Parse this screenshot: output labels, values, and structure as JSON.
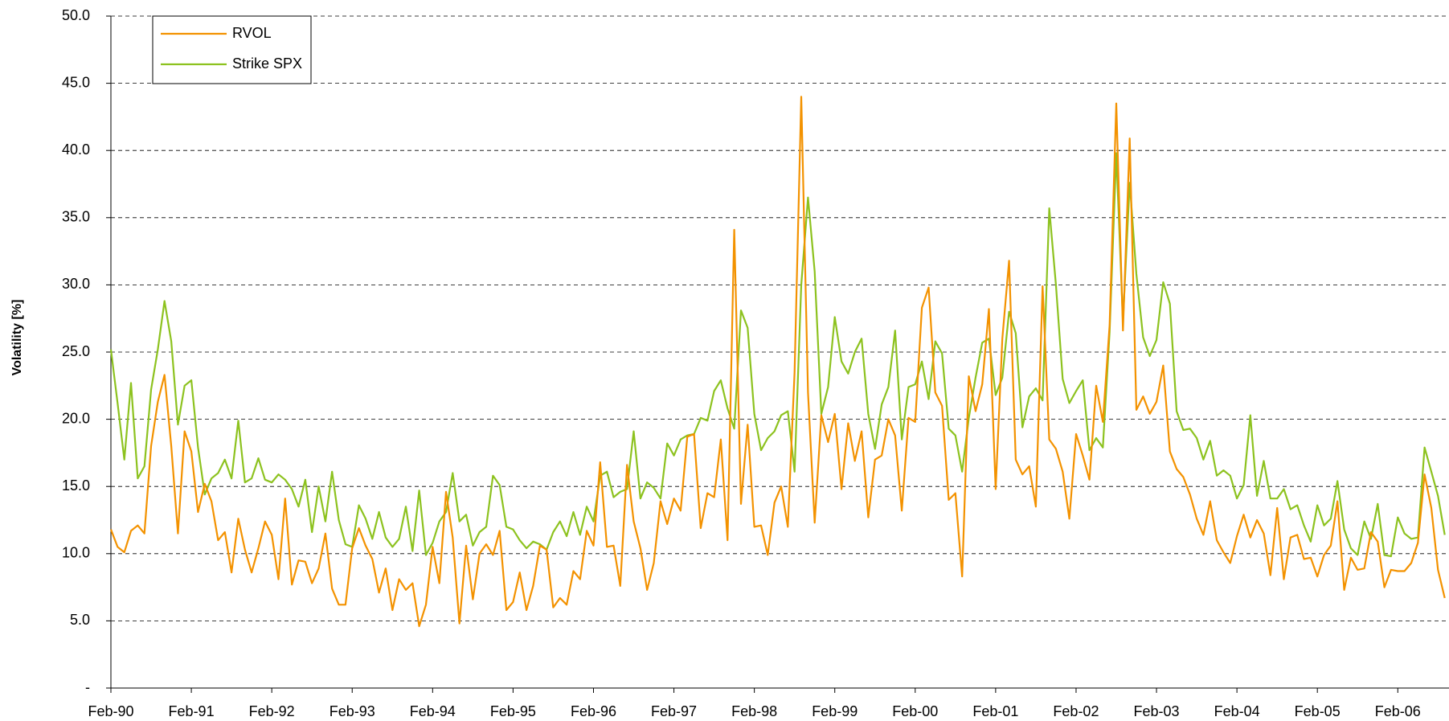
{
  "chart_data": {
    "type": "line",
    "y_label": "Volatility [%]",
    "categories": [
      "Feb-90",
      null,
      null,
      null,
      null,
      null,
      null,
      null,
      null,
      null,
      null,
      null,
      "Feb-91",
      null,
      null,
      null,
      null,
      null,
      null,
      null,
      null,
      null,
      null,
      null,
      "Feb-92",
      null,
      null,
      null,
      null,
      null,
      null,
      null,
      null,
      null,
      null,
      null,
      "Feb-93",
      null,
      null,
      null,
      null,
      null,
      null,
      null,
      null,
      null,
      null,
      null,
      "Feb-94",
      null,
      null,
      null,
      null,
      null,
      null,
      null,
      null,
      null,
      null,
      null,
      "Feb-95",
      null,
      null,
      null,
      null,
      null,
      null,
      null,
      null,
      null,
      null,
      null,
      "Feb-96",
      null,
      null,
      null,
      null,
      null,
      null,
      null,
      null,
      null,
      null,
      null,
      "Feb-97",
      null,
      null,
      null,
      null,
      null,
      null,
      null,
      null,
      null,
      null,
      null,
      "Feb-98",
      null,
      null,
      null,
      null,
      null,
      null,
      null,
      null,
      null,
      null,
      null,
      "Feb-99",
      null,
      null,
      null,
      null,
      null,
      null,
      null,
      null,
      null,
      null,
      null,
      "Feb-00",
      null,
      null,
      null,
      null,
      null,
      null,
      null,
      null,
      null,
      null,
      null,
      "Feb-01",
      null,
      null,
      null,
      null,
      null,
      null,
      null,
      null,
      null,
      null,
      null,
      "Feb-02",
      null,
      null,
      null,
      null,
      null,
      null,
      null,
      null,
      null,
      null,
      null,
      "Feb-03",
      null,
      null,
      null,
      null,
      null,
      null,
      null,
      null,
      null,
      null,
      null,
      "Feb-04",
      null,
      null,
      null,
      null,
      null,
      null,
      null,
      null,
      null,
      null,
      null,
      "Feb-05",
      null,
      null,
      null,
      null,
      null,
      null,
      null,
      null,
      null,
      null,
      null,
      "Feb-06",
      null,
      null,
      null,
      null,
      null,
      null,
      null
    ],
    "series": [
      {
        "name": "RVOL",
        "color": "#f39200",
        "values": [
          11.8,
          10.5,
          10.1,
          11.7,
          12.1,
          11.5,
          18,
          21.3,
          23.3,
          18,
          11.5,
          19.1,
          17.6,
          13.1,
          15.2,
          13.9,
          11,
          11.6,
          8.6,
          12.6,
          10.3,
          8.6,
          10.4,
          12.4,
          11.4,
          8.1,
          14.1,
          7.7,
          9.5,
          9.4,
          7.8,
          8.9,
          11.5,
          7.4,
          6.2,
          6.2,
          10.4,
          11.9,
          10.6,
          9.6,
          7.1,
          8.9,
          5.8,
          8.1,
          7.3,
          7.8,
          4.6,
          6.2,
          10.5,
          7.8,
          14.6,
          11.2,
          4.8,
          10.6,
          6.6,
          10,
          10.7,
          9.9,
          11.7,
          5.8,
          6.4,
          8.6,
          5.8,
          7.6,
          10.6,
          10.3,
          6,
          6.7,
          6.2,
          8.7,
          8.1,
          11.7,
          10.6,
          16.8,
          10.5,
          10.6,
          7.6,
          16.6,
          12.4,
          10.4,
          7.3,
          9.3,
          13.9,
          12.2,
          14.1,
          13.2,
          18.7,
          18.9,
          11.9,
          14.5,
          14.2,
          18.5,
          11,
          34.1,
          13.7,
          19.6,
          12,
          12.1,
          9.9,
          13.8,
          15,
          12,
          23.5,
          44,
          22,
          12.3,
          20.3,
          18.3,
          20.4,
          14.8,
          19.7,
          16.9,
          19.1,
          12.7,
          17,
          17.3,
          20,
          18.8,
          13.2,
          20.1,
          19.8,
          28.3,
          29.8,
          22,
          21,
          14,
          14.5,
          8.3,
          23.2,
          20.6,
          22.6,
          28.2,
          14.8,
          26,
          31.8,
          17,
          15.9,
          16.5,
          13.5,
          29.9,
          18.5,
          17.8,
          16.1,
          12.6,
          18.9,
          17.3,
          15.5,
          22.5,
          19.8,
          27,
          43.5,
          26.6,
          40.9,
          20.7,
          21.7,
          20.4,
          21.3,
          24,
          17.6,
          16.3,
          15.7,
          14.4,
          12.6,
          11.4,
          13.9,
          11,
          10.1,
          9.3,
          11.3,
          12.9,
          11.2,
          12.5,
          11.5,
          8.4,
          13.4,
          8.1,
          11.2,
          11.4,
          9.6,
          9.7,
          8.3,
          9.9,
          10.6,
          13.9,
          7.3,
          9.7,
          8.8,
          8.9,
          11.6,
          10.9,
          7.5,
          8.8,
          8.7,
          8.7,
          9.3,
          10.8,
          15.9,
          13.4,
          8.8,
          6.7
        ]
      },
      {
        "name": "Strike SPX",
        "color": "#8dc21f",
        "values": [
          25.2,
          21.2,
          17,
          22.7,
          15.6,
          16.5,
          22.2,
          25.2,
          28.8,
          25.8,
          19.6,
          22.5,
          22.9,
          17.9,
          14.4,
          15.6,
          16,
          17,
          15.6,
          19.9,
          15.3,
          15.6,
          17.1,
          15.5,
          15.3,
          15.9,
          15.5,
          14.8,
          13.5,
          15.5,
          11.6,
          15,
          12.4,
          16.1,
          12.5,
          10.7,
          10.5,
          13.6,
          12.6,
          11.1,
          13.1,
          11.2,
          10.5,
          11.1,
          13.5,
          10.2,
          14.7,
          9.9,
          10.8,
          12.4,
          13.1,
          16,
          12.4,
          12.9,
          10.6,
          11.6,
          12,
          15.8,
          15.1,
          12,
          11.8,
          11,
          10.4,
          10.9,
          10.7,
          10.3,
          11.6,
          12.4,
          11.3,
          13.1,
          11.4,
          13.5,
          12.4,
          15.8,
          16.1,
          14.2,
          14.6,
          14.8,
          19.1,
          14.1,
          15.3,
          14.9,
          14.1,
          18.2,
          17.3,
          18.5,
          18.8,
          18.9,
          20.1,
          19.9,
          22.1,
          22.9,
          20.8,
          19.3,
          28.1,
          26.8,
          20.4,
          17.7,
          18.6,
          19.1,
          20.3,
          20.6,
          16.1,
          30,
          36.5,
          31,
          20.4,
          22.4,
          27.6,
          24.3,
          23.4,
          25,
          26,
          20.4,
          17.8,
          21.1,
          22.4,
          26.6,
          18.5,
          22.4,
          22.6,
          24.3,
          21.5,
          25.8,
          24.9,
          19.3,
          18.8,
          16.1,
          20.1,
          23.1,
          25.7,
          26,
          21.8,
          23.1,
          28,
          26.4,
          19.4,
          21.7,
          22.3,
          21.4,
          35.7,
          30,
          23,
          21.2,
          22.1,
          22.9,
          17.7,
          18.6,
          17.9,
          26.5,
          39.8,
          27.3,
          37.6,
          30.8,
          26.1,
          24.7,
          25.9,
          30.2,
          28.6,
          20.6,
          19.2,
          19.3,
          18.6,
          17,
          18.4,
          15.8,
          16.2,
          15.8,
          14.1,
          15.1,
          20.3,
          14.3,
          16.9,
          14.1,
          14.1,
          14.8,
          13.3,
          13.6,
          12.1,
          10.9,
          13.6,
          12.1,
          12.6,
          15.4,
          11.8,
          10.4,
          9.9,
          12.4,
          11.1,
          13.7,
          9.9,
          9.8,
          12.7,
          11.5,
          11.1,
          11.2,
          17.9,
          16.1,
          14.3,
          11.4
        ]
      }
    ],
    "ylim": [
      0,
      50
    ],
    "yticks": [
      {
        "value": 0,
        "label": "-"
      },
      {
        "value": 5,
        "label": "5.0"
      },
      {
        "value": 10,
        "label": "10.0"
      },
      {
        "value": 15,
        "label": "15.0"
      },
      {
        "value": 20,
        "label": "20.0"
      },
      {
        "value": 25,
        "label": "25.0"
      },
      {
        "value": 30,
        "label": "30.0"
      },
      {
        "value": 35,
        "label": "35.0"
      },
      {
        "value": 40,
        "label": "40.0"
      },
      {
        "value": 45,
        "label": "45.0"
      },
      {
        "value": 50,
        "label": "50.0"
      }
    ],
    "grid": true,
    "legend": "top-left"
  }
}
